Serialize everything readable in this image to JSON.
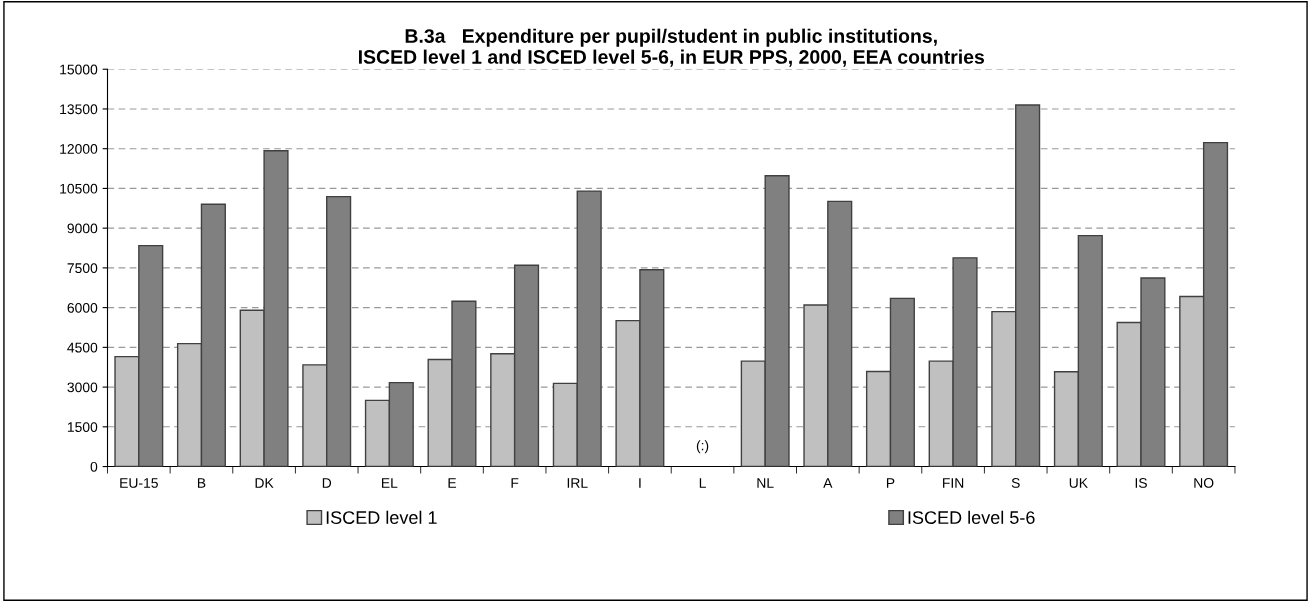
{
  "chart_data": {
    "type": "bar",
    "title": "B.3a   Expenditure per pupil/student in public institutions,\nISCED level 1 and ISCED level 5-6, in EUR PPS, 2000, EEA countries",
    "categories": [
      "EU-15",
      "B",
      "DK",
      "D",
      "EL",
      "E",
      "F",
      "IRL",
      "I",
      "L",
      "NL",
      "A",
      "P",
      "FIN",
      "S",
      "UK",
      "IS",
      "NO"
    ],
    "series": [
      {
        "name": "ISCED level 1",
        "color": "#c0c0c0",
        "values": [
          4150,
          4640,
          5900,
          3840,
          2500,
          4040,
          4260,
          3140,
          5510,
          null,
          3980,
          6100,
          3590,
          3980,
          5850,
          3580,
          5440,
          6420
        ]
      },
      {
        "name": "ISCED level 5-6",
        "color": "#808080",
        "values": [
          8340,
          9900,
          11920,
          10190,
          3170,
          6240,
          7600,
          10400,
          7430,
          null,
          10980,
          10010,
          6350,
          7880,
          13650,
          8720,
          7120,
          12230
        ]
      }
    ],
    "ylim": [
      0,
      15000
    ],
    "yticks": [
      0,
      1500,
      3000,
      4500,
      6000,
      7500,
      9000,
      10500,
      12000,
      13500,
      15000
    ],
    "grid": "y",
    "legend": "bottom",
    "annotations": [
      "(:)"
    ]
  }
}
